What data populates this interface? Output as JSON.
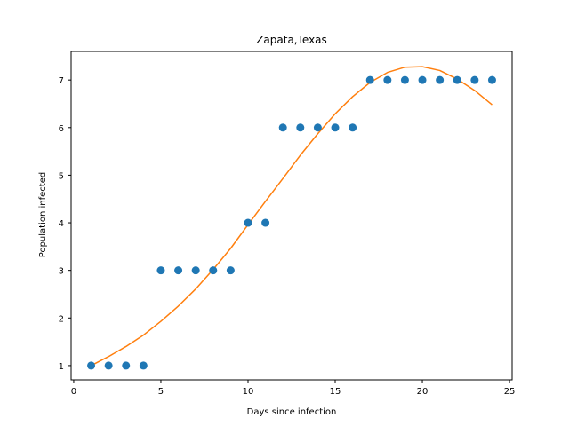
{
  "chart_data": {
    "type": "scatter",
    "title": "Zapata,Texas",
    "xlabel": "Days since infection",
    "ylabel": "Population infected",
    "xlim": [
      -0.15,
      25.15
    ],
    "ylim": [
      0.7,
      7.6
    ],
    "x_ticks": [
      0,
      5,
      10,
      15,
      20,
      25
    ],
    "y_ticks": [
      1,
      2,
      3,
      4,
      5,
      6,
      7
    ],
    "grid": false,
    "series": [
      {
        "kind": "scatter",
        "color": "#1f77b4",
        "x": [
          1,
          2,
          3,
          4,
          5,
          6,
          7,
          8,
          9,
          10,
          11,
          12,
          13,
          14,
          15,
          16,
          17,
          18,
          19,
          20,
          21,
          22,
          23,
          24
        ],
        "y": [
          1,
          1,
          1,
          1,
          3,
          3,
          3,
          3,
          3,
          4,
          4,
          6,
          6,
          6,
          6,
          6,
          7,
          7,
          7,
          7,
          7,
          7,
          7,
          7
        ]
      },
      {
        "kind": "line",
        "color": "#ff7f0e",
        "x": [
          1,
          2,
          3,
          4,
          5,
          6,
          7,
          8,
          9,
          10,
          11,
          12,
          13,
          14,
          15,
          16,
          17,
          18,
          19,
          20,
          21,
          22,
          23,
          24
        ],
        "y": [
          1.0,
          1.19,
          1.4,
          1.64,
          1.93,
          2.25,
          2.61,
          3.02,
          3.46,
          3.96,
          4.45,
          4.93,
          5.42,
          5.87,
          6.29,
          6.65,
          6.95,
          7.16,
          7.27,
          7.28,
          7.2,
          7.02,
          6.78,
          6.48
        ]
      }
    ]
  }
}
